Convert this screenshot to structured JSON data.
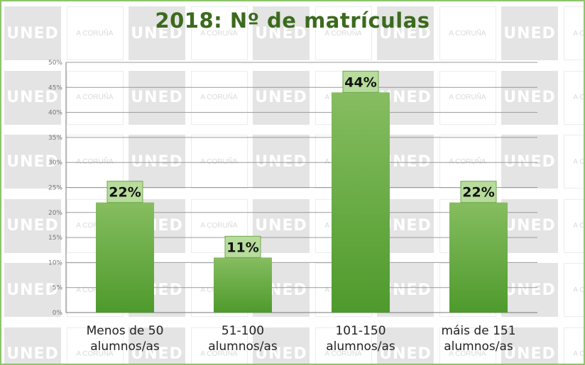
{
  "watermark": {
    "logo_text": "UNED",
    "location_text": "A CORUÑA"
  },
  "colors": {
    "bar_top": "#86bd60",
    "bar_bottom": "#4e9a2c",
    "label_bg": "#b7dc9c",
    "label_border": "#6fa84d",
    "title": "#3c6a1e",
    "border": "#8cc56a",
    "grid": "#9a9a9a"
  },
  "chart_data": {
    "type": "bar",
    "title": "2018: Nº de matrículas",
    "categories": [
      "Menos de 50 alumnos/as",
      "51-100 alumnos/as",
      "101-150 alumnos/as",
      "máis de 151 alumnos/as"
    ],
    "category_lines": [
      [
        "Menos de 50",
        "alumnos/as"
      ],
      [
        "51-100",
        "alumnos/as"
      ],
      [
        "101-150",
        "alumnos/as"
      ],
      [
        "máis de 151",
        "alumnos/as"
      ]
    ],
    "values": [
      22,
      11,
      44,
      22
    ],
    "data_labels": [
      "22%",
      "11%",
      "44%",
      "22%"
    ],
    "ylim": [
      0,
      50
    ],
    "yticks": [
      "0%",
      "5%",
      "10%",
      "15%",
      "20%",
      "25%",
      "30%",
      "35%",
      "40%",
      "45%",
      "50%"
    ],
    "xlabel": "",
    "ylabel": "",
    "grid": true,
    "legend": "none"
  }
}
